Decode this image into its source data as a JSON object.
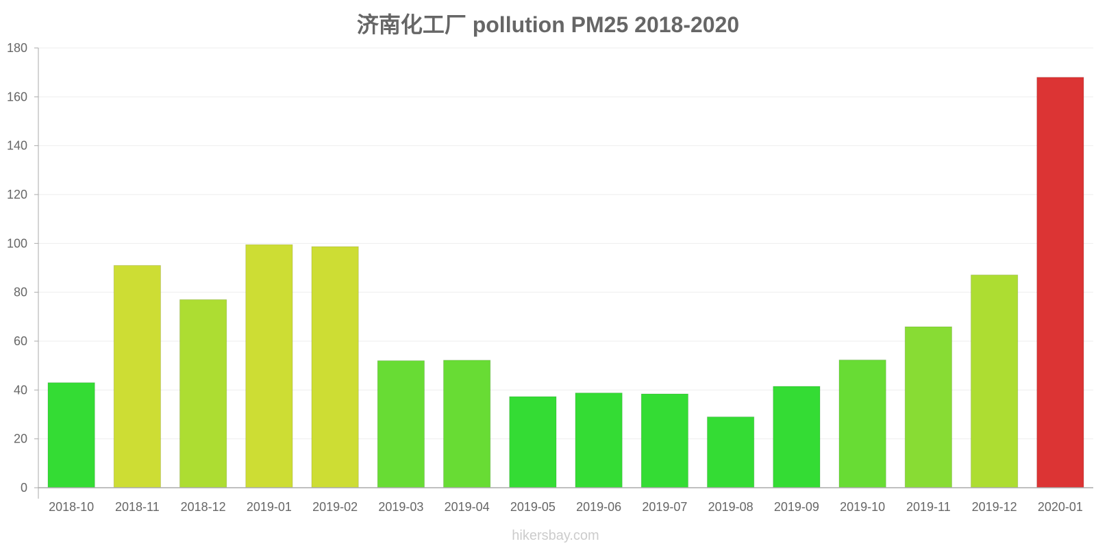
{
  "chart_data": {
    "type": "bar",
    "title": "济南化工厂 pollution PM25 2018-2020",
    "xlabel": "",
    "ylabel": "",
    "ylim": [
      0,
      180
    ],
    "yticks": [
      0,
      20,
      40,
      60,
      80,
      100,
      120,
      140,
      160,
      180
    ],
    "categories": [
      "2018-10",
      "2018-11",
      "2018-12",
      "2019-01",
      "2019-02",
      "2019-03",
      "2019-04",
      "2019-05",
      "2019-06",
      "2019-07",
      "2019-08",
      "2019-09",
      "2019-10",
      "2019-11",
      "2019-12",
      "2020-01"
    ],
    "values": [
      43,
      91,
      77,
      99.5,
      98.7,
      52,
      52.2,
      37.3,
      38.8,
      38.4,
      29,
      41.5,
      52.3,
      65.9,
      87.1,
      168
    ],
    "colors": [
      "#34dc34",
      "#cddd34",
      "#addd32",
      "#cddd34",
      "#cddd34",
      "#68dc34",
      "#68dc34",
      "#34dc34",
      "#34dc34",
      "#34dc34",
      "#34dc34",
      "#34dc34",
      "#68dc34",
      "#88dc34",
      "#addd32",
      "#dc3434"
    ],
    "grid": true,
    "legend": "none"
  },
  "watermark": "hikersbay.com"
}
